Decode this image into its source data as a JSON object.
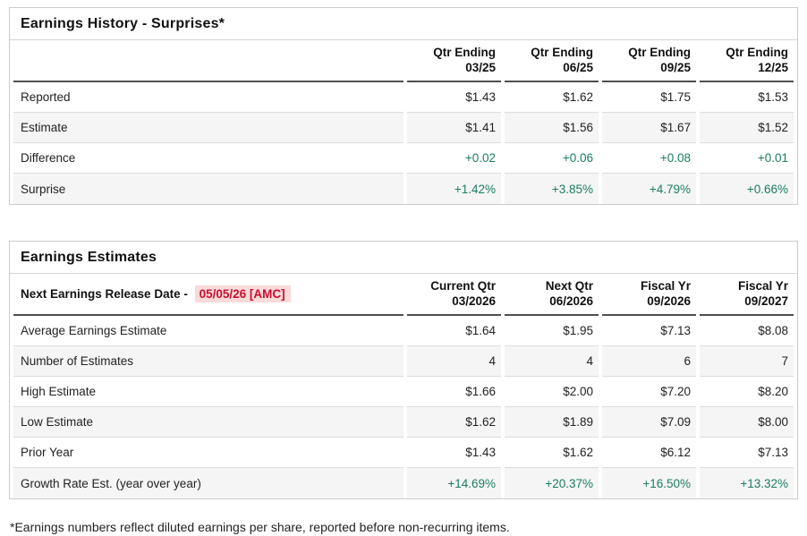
{
  "colors": {
    "positive_green": "#1a7d64",
    "alert_red": "#c8102e",
    "alert_red_bg": "#fbdada",
    "stripe_gray": "#f5f5f5",
    "header_rule": "#4f4f4f",
    "panel_border": "#cccccc"
  },
  "history": {
    "title": "Earnings History - Surprises*",
    "columns": [
      {
        "line1": "Qtr Ending",
        "line2": "03/25"
      },
      {
        "line1": "Qtr Ending",
        "line2": "06/25"
      },
      {
        "line1": "Qtr Ending",
        "line2": "09/25"
      },
      {
        "line1": "Qtr Ending",
        "line2": "12/25"
      }
    ],
    "rows": [
      {
        "label": "Reported",
        "values": [
          "$1.43",
          "$1.62",
          "$1.75",
          "$1.53"
        ]
      },
      {
        "label": "Estimate",
        "values": [
          "$1.41",
          "$1.56",
          "$1.67",
          "$1.52"
        ]
      },
      {
        "label": "Difference",
        "values": [
          "+0.02",
          "+0.06",
          "+0.08",
          "+0.01"
        ]
      },
      {
        "label": "Surprise",
        "values": [
          "+1.42%",
          "+3.85%",
          "+4.79%",
          "+0.66%"
        ]
      }
    ]
  },
  "estimates": {
    "title": "Earnings Estimates",
    "release_date_label": "Next Earnings Release Date -",
    "release_date_value": "05/05/26 [AMC]",
    "columns": [
      {
        "line1": "Current Qtr",
        "line2": "03/2026"
      },
      {
        "line1": "Next Qtr",
        "line2": "06/2026"
      },
      {
        "line1": "Fiscal Yr",
        "line2": "09/2026"
      },
      {
        "line1": "Fiscal Yr",
        "line2": "09/2027"
      }
    ],
    "rows": [
      {
        "label": "Average Earnings Estimate",
        "values": [
          "$1.64",
          "$1.95",
          "$7.13",
          "$8.08"
        ]
      },
      {
        "label": "Number of Estimates",
        "values": [
          "4",
          "4",
          "6",
          "7"
        ]
      },
      {
        "label": "High Estimate",
        "values": [
          "$1.66",
          "$2.00",
          "$7.20",
          "$8.20"
        ]
      },
      {
        "label": "Low Estimate",
        "values": [
          "$1.62",
          "$1.89",
          "$7.09",
          "$8.00"
        ]
      },
      {
        "label": "Prior Year",
        "values": [
          "$1.43",
          "$1.62",
          "$6.12",
          "$7.13"
        ]
      },
      {
        "label": "Growth Rate Est. (year over year)",
        "values": [
          "+14.69%",
          "+20.37%",
          "+16.50%",
          "+13.32%"
        ]
      }
    ]
  },
  "footnote": "*Earnings numbers reflect diluted earnings per share, reported before non-recurring items."
}
